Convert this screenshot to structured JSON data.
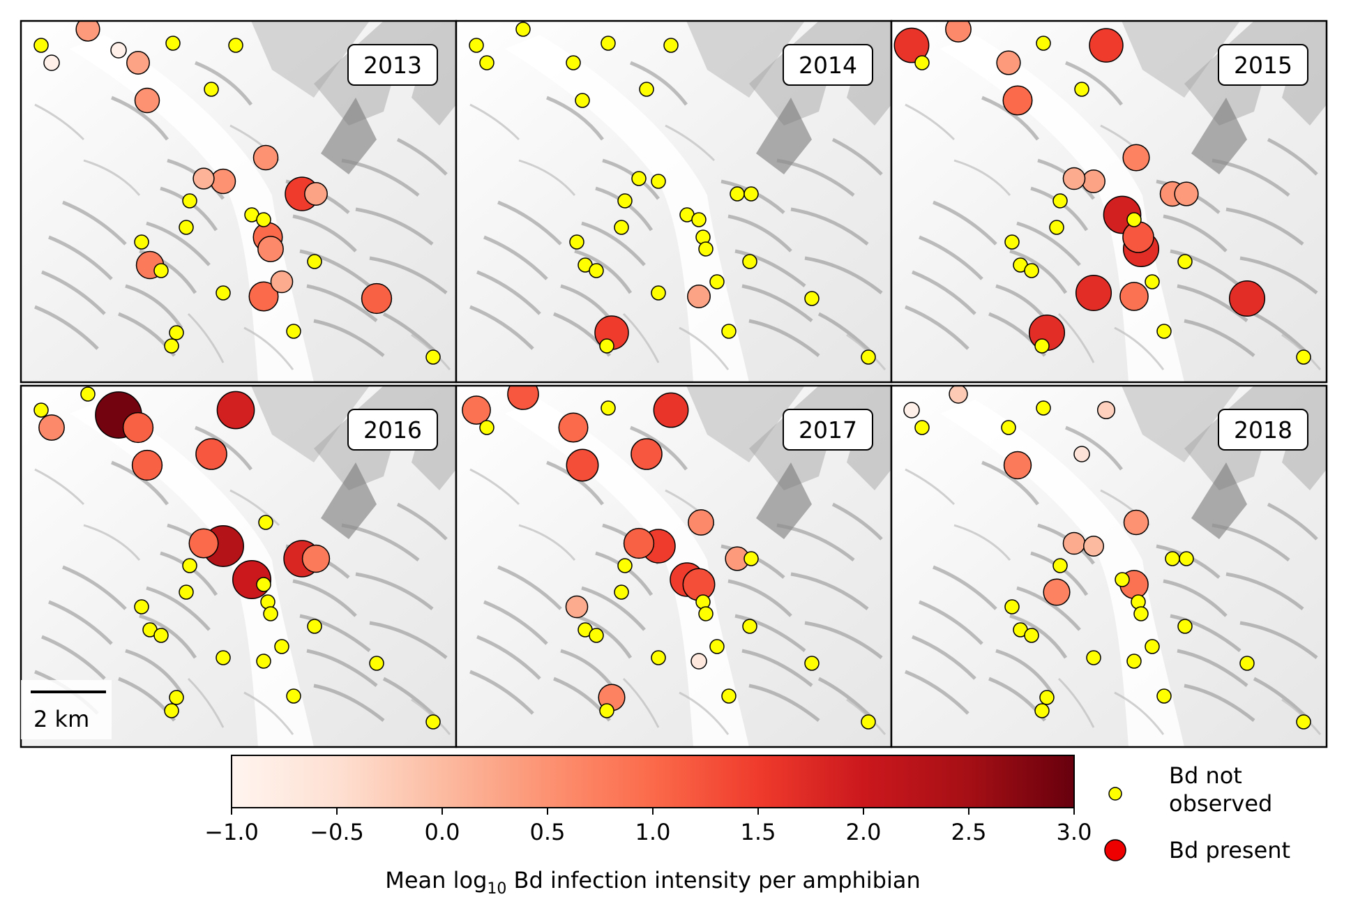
{
  "figure": {
    "scale_bar_label": "2 km",
    "colorbar": {
      "label_prefix": "Mean log",
      "label_subscript": "10",
      "label_suffix": " Bd infection intensity per amphibian",
      "min": -1.0,
      "max": 3.0,
      "ticks": [
        "−1.0",
        "−0.5",
        "0.0",
        "0.5",
        "1.0",
        "1.5",
        "2.0",
        "2.5",
        "3.0"
      ],
      "tick_values": [
        -1.0,
        -0.5,
        0.0,
        0.5,
        1.0,
        1.5,
        2.0,
        2.5,
        3.0
      ],
      "colormap": [
        "#fff5f0",
        "#fee0d2",
        "#fcbba1",
        "#fc9272",
        "#fb6a4a",
        "#ef3b2c",
        "#cb181d",
        "#a50f15",
        "#67000d"
      ]
    },
    "legend": {
      "not_observed_line1": "Bd not",
      "not_observed_line2": "observed",
      "present": "Bd present",
      "not_observed_color": "#ffff00",
      "present_color": "#ee0000"
    }
  },
  "chart_data": {
    "type": "scatter",
    "panels": [
      {
        "year": "2013",
        "sites": [
          {
            "id": "A",
            "status": "not_observed"
          },
          {
            "id": "B",
            "status": "present",
            "intensity": -0.9
          },
          {
            "id": "C",
            "status": "present",
            "intensity": 0.4
          },
          {
            "id": "D",
            "status": "present",
            "intensity": -0.9
          },
          {
            "id": "E",
            "status": "present",
            "intensity": 0.3
          },
          {
            "id": "F",
            "status": "not_observed"
          },
          {
            "id": "G",
            "status": "not_observed"
          },
          {
            "id": "H",
            "status": "not_observed"
          },
          {
            "id": "I",
            "status": "present",
            "intensity": 0.5
          },
          {
            "id": "J",
            "status": "present",
            "intensity": 0.1
          },
          {
            "id": "K",
            "status": "present",
            "intensity": 0.5
          },
          {
            "id": "L",
            "status": "present",
            "intensity": 0.5
          },
          {
            "id": "M",
            "status": "not_observed"
          },
          {
            "id": "N",
            "status": "not_observed"
          },
          {
            "id": "O",
            "status": "not_observed"
          },
          {
            "id": "P",
            "status": "present",
            "intensity": 1.5
          },
          {
            "id": "Q",
            "status": "not_observed"
          },
          {
            "id": "R",
            "status": "present",
            "intensity": 0.3
          },
          {
            "id": "S",
            "status": "present",
            "intensity": 1.0
          },
          {
            "id": "T",
            "status": "present",
            "intensity": 0.6
          },
          {
            "id": "U",
            "status": "not_observed"
          },
          {
            "id": "V",
            "status": "not_observed"
          },
          {
            "id": "W",
            "status": "present",
            "intensity": 0.8
          },
          {
            "id": "X",
            "status": "not_observed"
          },
          {
            "id": "Y",
            "status": "present",
            "intensity": 0.2
          },
          {
            "id": "Z",
            "status": "present",
            "intensity": 1.0
          },
          {
            "id": "AA",
            "status": "not_observed"
          },
          {
            "id": "AB",
            "status": "present",
            "intensity": 1.1
          },
          {
            "id": "AC",
            "status": "not_observed"
          },
          {
            "id": "AD",
            "status": "not_observed"
          },
          {
            "id": "AE",
            "status": "not_observed"
          },
          {
            "id": "AF",
            "status": "not_observed"
          }
        ]
      },
      {
        "year": "2014",
        "sites": [
          {
            "id": "A",
            "status": "not_observed"
          },
          {
            "id": "B",
            "status": "not_observed"
          },
          {
            "id": "C",
            "status": "not_observed"
          },
          {
            "id": "E",
            "status": "not_observed"
          },
          {
            "id": "F",
            "status": "not_observed"
          },
          {
            "id": "G",
            "status": "not_observed"
          },
          {
            "id": "H",
            "status": "not_observed"
          },
          {
            "id": "I",
            "status": "not_observed"
          },
          {
            "id": "J",
            "status": "not_observed"
          },
          {
            "id": "K",
            "status": "not_observed"
          },
          {
            "id": "M",
            "status": "not_observed"
          },
          {
            "id": "N",
            "status": "not_observed"
          },
          {
            "id": "O",
            "status": "not_observed"
          },
          {
            "id": "P",
            "status": "not_observed"
          },
          {
            "id": "Q",
            "status": "not_observed"
          },
          {
            "id": "R",
            "status": "not_observed"
          },
          {
            "id": "S",
            "status": "not_observed"
          },
          {
            "id": "T",
            "status": "not_observed"
          },
          {
            "id": "U",
            "status": "not_observed"
          },
          {
            "id": "V",
            "status": "not_observed"
          },
          {
            "id": "W",
            "status": "not_observed"
          },
          {
            "id": "X",
            "status": "not_observed"
          },
          {
            "id": "Y",
            "status": "not_observed"
          },
          {
            "id": "Z",
            "status": "present",
            "intensity": 0.3
          },
          {
            "id": "AA",
            "status": "not_observed"
          },
          {
            "id": "AB",
            "status": "not_observed"
          },
          {
            "id": "AC",
            "status": "present",
            "intensity": 1.5
          },
          {
            "id": "AD",
            "status": "not_observed"
          },
          {
            "id": "AE",
            "status": "not_observed"
          },
          {
            "id": "AF",
            "status": "not_observed"
          }
        ]
      },
      {
        "year": "2015",
        "sites": [
          {
            "id": "A",
            "status": "present",
            "intensity": 1.6
          },
          {
            "id": "B",
            "status": "not_observed"
          },
          {
            "id": "C",
            "status": "present",
            "intensity": 0.6
          },
          {
            "id": "E",
            "status": "present",
            "intensity": 0.4
          },
          {
            "id": "F",
            "status": "not_observed"
          },
          {
            "id": "G",
            "status": "present",
            "intensity": 1.5
          },
          {
            "id": "H",
            "status": "not_observed"
          },
          {
            "id": "I",
            "status": "present",
            "intensity": 1.0
          },
          {
            "id": "J",
            "status": "present",
            "intensity": 0.2
          },
          {
            "id": "K",
            "status": "present",
            "intensity": 0.3
          },
          {
            "id": "L",
            "status": "present",
            "intensity": 0.7
          },
          {
            "id": "M",
            "status": "not_observed"
          },
          {
            "id": "N",
            "status": "not_observed"
          },
          {
            "id": "O",
            "status": "present",
            "intensity": 1.9
          },
          {
            "id": "P",
            "status": "present",
            "intensity": 0.5
          },
          {
            "id": "Q",
            "status": "not_observed"
          },
          {
            "id": "R",
            "status": "present",
            "intensity": 0.4
          },
          {
            "id": "S",
            "status": "present",
            "intensity": 1.2
          },
          {
            "id": "T",
            "status": "present",
            "intensity": 1.7
          },
          {
            "id": "U",
            "status": "not_observed"
          },
          {
            "id": "V",
            "status": "not_observed"
          },
          {
            "id": "W",
            "status": "not_observed"
          },
          {
            "id": "X",
            "status": "not_observed"
          },
          {
            "id": "Y",
            "status": "not_observed"
          },
          {
            "id": "Z",
            "status": "present",
            "intensity": 0.9
          },
          {
            "id": "AA",
            "status": "present",
            "intensity": 1.7
          },
          {
            "id": "AB",
            "status": "present",
            "intensity": 1.7
          },
          {
            "id": "AC",
            "status": "present",
            "intensity": 1.7
          },
          {
            "id": "AD",
            "status": "not_observed"
          },
          {
            "id": "AE",
            "status": "not_observed"
          },
          {
            "id": "AF",
            "status": "not_observed"
          }
        ]
      },
      {
        "year": "2016",
        "sites": [
          {
            "id": "A",
            "status": "not_observed"
          },
          {
            "id": "B",
            "status": "present",
            "intensity": 0.6
          },
          {
            "id": "C",
            "status": "not_observed"
          },
          {
            "id": "D",
            "status": "present",
            "intensity": 2.9
          },
          {
            "id": "E",
            "status": "present",
            "intensity": 1.1
          },
          {
            "id": "G",
            "status": "present",
            "intensity": 1.9
          },
          {
            "id": "H",
            "status": "present",
            "intensity": 1.2
          },
          {
            "id": "I",
            "status": "present",
            "intensity": 1.1
          },
          {
            "id": "J",
            "status": "present",
            "intensity": 1.0
          },
          {
            "id": "K",
            "status": "present",
            "intensity": 2.3
          },
          {
            "id": "L",
            "status": "not_observed"
          },
          {
            "id": "M",
            "status": "not_observed"
          },
          {
            "id": "N",
            "status": "not_observed"
          },
          {
            "id": "O",
            "status": "present",
            "intensity": 2.0
          },
          {
            "id": "P",
            "status": "present",
            "intensity": 1.8
          },
          {
            "id": "Q",
            "status": "not_observed"
          },
          {
            "id": "R",
            "status": "present",
            "intensity": 0.8
          },
          {
            "id": "S",
            "status": "not_observed"
          },
          {
            "id": "T",
            "status": "not_observed"
          },
          {
            "id": "U",
            "status": "not_observed"
          },
          {
            "id": "V",
            "status": "not_observed"
          },
          {
            "id": "W",
            "status": "not_observed"
          },
          {
            "id": "X",
            "status": "not_observed"
          },
          {
            "id": "Y",
            "status": "not_observed"
          },
          {
            "id": "Z",
            "status": "not_observed"
          },
          {
            "id": "AA",
            "status": "not_observed"
          },
          {
            "id": "AB",
            "status": "not_observed"
          },
          {
            "id": "AC",
            "status": "not_observed"
          },
          {
            "id": "AD",
            "status": "not_observed"
          },
          {
            "id": "AE",
            "status": "not_observed"
          },
          {
            "id": "AF",
            "status": "not_observed"
          }
        ]
      },
      {
        "year": "2017",
        "sites": [
          {
            "id": "A",
            "status": "present",
            "intensity": 0.9
          },
          {
            "id": "B",
            "status": "not_observed"
          },
          {
            "id": "C",
            "status": "present",
            "intensity": 1.2
          },
          {
            "id": "E",
            "status": "present",
            "intensity": 1.0
          },
          {
            "id": "F",
            "status": "not_observed"
          },
          {
            "id": "G",
            "status": "present",
            "intensity": 1.6
          },
          {
            "id": "H",
            "status": "present",
            "intensity": 1.2
          },
          {
            "id": "I",
            "status": "present",
            "intensity": 1.3
          },
          {
            "id": "J",
            "status": "present",
            "intensity": 1.1
          },
          {
            "id": "K",
            "status": "present",
            "intensity": 1.5
          },
          {
            "id": "L",
            "status": "present",
            "intensity": 0.6
          },
          {
            "id": "M",
            "status": "not_observed"
          },
          {
            "id": "N",
            "status": "not_observed"
          },
          {
            "id": "O",
            "status": "present",
            "intensity": 1.5
          },
          {
            "id": "P",
            "status": "present",
            "intensity": 0.4
          },
          {
            "id": "Q",
            "status": "present",
            "intensity": 1.3
          },
          {
            "id": "R",
            "status": "not_observed"
          },
          {
            "id": "S",
            "status": "not_observed"
          },
          {
            "id": "T",
            "status": "not_observed"
          },
          {
            "id": "U",
            "status": "present",
            "intensity": 0.2
          },
          {
            "id": "V",
            "status": "not_observed"
          },
          {
            "id": "W",
            "status": "not_observed"
          },
          {
            "id": "X",
            "status": "not_observed"
          },
          {
            "id": "Y",
            "status": "not_observed"
          },
          {
            "id": "Z",
            "status": "present",
            "intensity": -0.7
          },
          {
            "id": "AA",
            "status": "not_observed"
          },
          {
            "id": "AB",
            "status": "not_observed"
          },
          {
            "id": "AC",
            "status": "present",
            "intensity": 0.7
          },
          {
            "id": "AD",
            "status": "not_observed"
          },
          {
            "id": "AE",
            "status": "not_observed"
          },
          {
            "id": "AF",
            "status": "not_observed"
          }
        ]
      },
      {
        "year": "2018",
        "sites": [
          {
            "id": "A",
            "status": "present",
            "intensity": -0.9
          },
          {
            "id": "B",
            "status": "not_observed"
          },
          {
            "id": "C",
            "status": "present",
            "intensity": -0.2
          },
          {
            "id": "E",
            "status": "not_observed"
          },
          {
            "id": "F",
            "status": "not_observed"
          },
          {
            "id": "G",
            "status": "present",
            "intensity": -0.3
          },
          {
            "id": "H",
            "status": "present",
            "intensity": -0.6
          },
          {
            "id": "I",
            "status": "present",
            "intensity": 0.8
          },
          {
            "id": "J",
            "status": "present",
            "intensity": 0.2
          },
          {
            "id": "K",
            "status": "present",
            "intensity": 0.0
          },
          {
            "id": "L",
            "status": "present",
            "intensity": 0.5
          },
          {
            "id": "M",
            "status": "not_observed"
          },
          {
            "id": "N",
            "status": "present",
            "intensity": 0.7
          },
          {
            "id": "O",
            "status": "not_observed"
          },
          {
            "id": "P",
            "status": "not_observed"
          },
          {
            "id": "Q",
            "status": "present",
            "intensity": 0.9
          },
          {
            "id": "R",
            "status": "not_observed"
          },
          {
            "id": "S",
            "status": "not_observed"
          },
          {
            "id": "T",
            "status": "not_observed"
          },
          {
            "id": "U",
            "status": "not_observed"
          },
          {
            "id": "V",
            "status": "not_observed"
          },
          {
            "id": "W",
            "status": "not_observed"
          },
          {
            "id": "X",
            "status": "not_observed"
          },
          {
            "id": "Y",
            "status": "not_observed"
          },
          {
            "id": "Z",
            "status": "not_observed"
          },
          {
            "id": "AA",
            "status": "not_observed"
          },
          {
            "id": "AB",
            "status": "not_observed"
          },
          {
            "id": "AC",
            "status": "not_observed"
          },
          {
            "id": "AD",
            "status": "not_observed"
          },
          {
            "id": "AE",
            "status": "not_observed"
          },
          {
            "id": "AF",
            "status": "not_observed"
          }
        ]
      }
    ]
  }
}
